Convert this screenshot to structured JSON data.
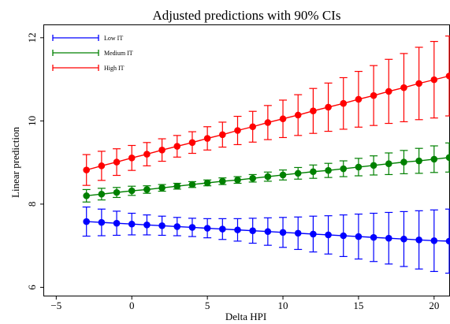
{
  "chart_data": {
    "type": "line",
    "title": "Adjusted predictions with 90% CIs",
    "xlabel": "Delta HPI",
    "ylabel": "Linear prediction",
    "xlim": [
      -5.8,
      21
    ],
    "ylim": [
      5.8,
      12.3
    ],
    "xticks": [
      -5,
      0,
      5,
      10,
      15,
      20
    ],
    "xtick_labels": [
      "−5",
      "0",
      "5",
      "10",
      "15",
      "20"
    ],
    "yticks": [
      6,
      8,
      10,
      12
    ],
    "ytick_labels": [
      "6",
      "8",
      "10",
      "12"
    ],
    "grid": false,
    "legend_position": "top-left",
    "x": [
      -3,
      -2,
      -1,
      0,
      1,
      2,
      3,
      4,
      5,
      6,
      7,
      8,
      9,
      10,
      11,
      12,
      13,
      14,
      15,
      16,
      17,
      18,
      19,
      20,
      21
    ],
    "series": [
      {
        "name": "Low IT",
        "color": "#0000ff",
        "values": [
          7.58,
          7.56,
          7.54,
          7.52,
          7.5,
          7.48,
          7.46,
          7.44,
          7.42,
          7.4,
          7.38,
          7.36,
          7.34,
          7.32,
          7.3,
          7.28,
          7.26,
          7.24,
          7.22,
          7.2,
          7.18,
          7.16,
          7.14,
          7.12,
          7.11
        ],
        "lower": [
          7.23,
          7.24,
          7.25,
          7.26,
          7.26,
          7.25,
          7.24,
          7.22,
          7.19,
          7.15,
          7.11,
          7.06,
          7.01,
          6.96,
          6.91,
          6.85,
          6.8,
          6.74,
          6.68,
          6.62,
          6.56,
          6.5,
          6.44,
          6.38,
          6.34
        ],
        "upper": [
          7.93,
          7.88,
          7.83,
          7.78,
          7.74,
          7.71,
          7.68,
          7.66,
          7.65,
          7.65,
          7.65,
          7.66,
          7.67,
          7.68,
          7.69,
          7.71,
          7.72,
          7.74,
          7.76,
          7.78,
          7.8,
          7.82,
          7.84,
          7.86,
          7.88
        ]
      },
      {
        "name": "Medium IT",
        "color": "#008000",
        "values": [
          8.2,
          8.24,
          8.28,
          8.32,
          8.35,
          8.39,
          8.43,
          8.47,
          8.51,
          8.55,
          8.58,
          8.62,
          8.66,
          8.7,
          8.74,
          8.78,
          8.81,
          8.85,
          8.89,
          8.93,
          8.97,
          9.01,
          9.04,
          9.08,
          9.12
        ],
        "lower": [
          8.05,
          8.1,
          8.16,
          8.21,
          8.26,
          8.31,
          8.36,
          8.4,
          8.44,
          8.47,
          8.5,
          8.53,
          8.55,
          8.58,
          8.6,
          8.62,
          8.64,
          8.66,
          8.68,
          8.7,
          8.71,
          8.73,
          8.74,
          8.76,
          8.77
        ],
        "upper": [
          8.35,
          8.38,
          8.4,
          8.43,
          8.44,
          8.47,
          8.5,
          8.54,
          8.58,
          8.63,
          8.66,
          8.71,
          8.77,
          8.82,
          8.88,
          8.94,
          8.98,
          9.04,
          9.1,
          9.16,
          9.23,
          9.29,
          9.34,
          9.4,
          9.47
        ]
      },
      {
        "name": "High IT",
        "color": "#ff0000",
        "values": [
          8.82,
          8.92,
          9.01,
          9.11,
          9.2,
          9.3,
          9.39,
          9.48,
          9.58,
          9.67,
          9.77,
          9.86,
          9.96,
          10.05,
          10.14,
          10.24,
          10.33,
          10.42,
          10.52,
          10.61,
          10.71,
          10.8,
          10.9,
          10.99,
          11.08
        ],
        "lower": [
          8.45,
          8.57,
          8.69,
          8.81,
          8.92,
          9.03,
          9.13,
          9.22,
          9.3,
          9.37,
          9.43,
          9.49,
          9.55,
          9.6,
          9.65,
          9.7,
          9.75,
          9.8,
          9.85,
          9.89,
          9.94,
          9.98,
          10.03,
          10.07,
          10.12
        ],
        "upper": [
          9.19,
          9.27,
          9.33,
          9.41,
          9.48,
          9.57,
          9.65,
          9.74,
          9.86,
          9.97,
          10.11,
          10.23,
          10.37,
          10.5,
          10.63,
          10.78,
          10.91,
          11.04,
          11.19,
          11.33,
          11.48,
          11.62,
          11.77,
          11.91,
          12.04
        ]
      }
    ]
  }
}
